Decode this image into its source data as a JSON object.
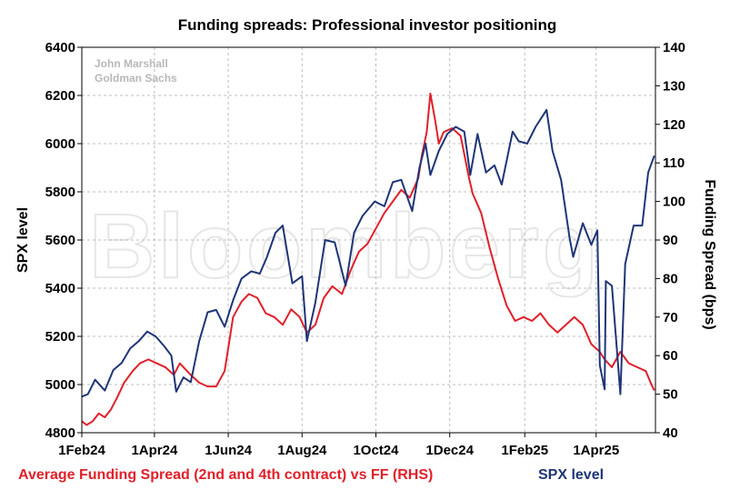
{
  "chart_data": {
    "type": "line",
    "title": "Funding spreads: Professional investor positioning",
    "ylabel": "SPX level",
    "y2label": "Funding Spread (bps)",
    "ylim": [
      4800,
      6400
    ],
    "y2lim": [
      40,
      140
    ],
    "yticks": [
      4800,
      5000,
      5200,
      5400,
      5600,
      5800,
      6000,
      6200,
      6400
    ],
    "y2ticks": [
      40,
      50,
      60,
      70,
      80,
      90,
      100,
      110,
      120,
      130,
      140
    ],
    "xlim": [
      "2024-02-01",
      "2025-05-20"
    ],
    "xticks": [
      {
        "date": "2024-02-01",
        "label": "1Feb24"
      },
      {
        "date": "2024-04-01",
        "label": "1Apr24"
      },
      {
        "date": "2024-06-01",
        "label": "1Jun24"
      },
      {
        "date": "2024-08-01",
        "label": "1Aug24"
      },
      {
        "date": "2024-10-01",
        "label": "1Oct24"
      },
      {
        "date": "2024-12-01",
        "label": "1Dec24"
      },
      {
        "date": "2025-02-01",
        "label": "1Feb25"
      },
      {
        "date": "2025-04-01",
        "label": "1Apr25"
      }
    ],
    "grid": true,
    "credit": [
      "John Marshall",
      "Goldman Sachs"
    ],
    "watermark": "Bloomberg",
    "series": [
      {
        "name": "Average Funding Spread (2nd and 4th contract) vs FF (RHS)",
        "axis": "right",
        "color": "#e0202a",
        "x": [
          "2024-02-01",
          "2024-02-05",
          "2024-02-10",
          "2024-02-15",
          "2024-02-20",
          "2024-02-25",
          "2024-03-01",
          "2024-03-07",
          "2024-03-14",
          "2024-03-20",
          "2024-03-27",
          "2024-04-03",
          "2024-04-10",
          "2024-04-17",
          "2024-04-22",
          "2024-05-01",
          "2024-05-08",
          "2024-05-15",
          "2024-05-22",
          "2024-05-29",
          "2024-06-05",
          "2024-06-12",
          "2024-06-18",
          "2024-06-25",
          "2024-07-02",
          "2024-07-09",
          "2024-07-16",
          "2024-07-23",
          "2024-07-30",
          "2024-08-05",
          "2024-08-12",
          "2024-08-19",
          "2024-08-26",
          "2024-09-03",
          "2024-09-10",
          "2024-09-17",
          "2024-09-24",
          "2024-10-01",
          "2024-10-08",
          "2024-10-15",
          "2024-10-22",
          "2024-10-29",
          "2024-11-05",
          "2024-11-08",
          "2024-11-12",
          "2024-11-15",
          "2024-11-19",
          "2024-11-22",
          "2024-11-26",
          "2024-12-03",
          "2024-12-10",
          "2024-12-17",
          "2024-12-20",
          "2024-12-27",
          "2025-01-03",
          "2025-01-10",
          "2025-01-17",
          "2025-01-24",
          "2025-01-31",
          "2025-02-07",
          "2025-02-14",
          "2025-02-21",
          "2025-02-28",
          "2025-03-07",
          "2025-03-14",
          "2025-03-21",
          "2025-03-28",
          "2025-04-04",
          "2025-04-08",
          "2025-04-14",
          "2025-04-21",
          "2025-04-28",
          "2025-05-05",
          "2025-05-12",
          "2025-05-16",
          "2025-05-19"
        ],
        "values": [
          43,
          42,
          43,
          45,
          44,
          46,
          49,
          53,
          56,
          58,
          59,
          58,
          57,
          55,
          58,
          55,
          53,
          52,
          52,
          56,
          70,
          74,
          76,
          75,
          71,
          70,
          68,
          72,
          70,
          66,
          68,
          75,
          78,
          76,
          82,
          87,
          89,
          93,
          97,
          100,
          103,
          101,
          106,
          112,
          118,
          128,
          121,
          115,
          118,
          119,
          117,
          106,
          102,
          97,
          88,
          80,
          73,
          69,
          70,
          69,
          71,
          68,
          66,
          68,
          70,
          68,
          63,
          61,
          59,
          57,
          61,
          58,
          57,
          56,
          53,
          51
        ]
      },
      {
        "name": "SPX level",
        "axis": "left",
        "color": "#1f3577",
        "x": [
          "2024-02-01",
          "2024-02-06",
          "2024-02-12",
          "2024-02-20",
          "2024-02-27",
          "2024-03-05",
          "2024-03-12",
          "2024-03-19",
          "2024-03-26",
          "2024-04-02",
          "2024-04-09",
          "2024-04-15",
          "2024-04-19",
          "2024-04-25",
          "2024-05-01",
          "2024-05-08",
          "2024-05-15",
          "2024-05-22",
          "2024-05-29",
          "2024-06-05",
          "2024-06-12",
          "2024-06-20",
          "2024-06-27",
          "2024-07-03",
          "2024-07-10",
          "2024-07-16",
          "2024-07-24",
          "2024-08-01",
          "2024-08-05",
          "2024-08-12",
          "2024-08-20",
          "2024-08-28",
          "2024-09-06",
          "2024-09-13",
          "2024-09-20",
          "2024-09-30",
          "2024-10-08",
          "2024-10-15",
          "2024-10-22",
          "2024-10-31",
          "2024-11-06",
          "2024-11-11",
          "2024-11-15",
          "2024-11-22",
          "2024-11-29",
          "2024-12-06",
          "2024-12-13",
          "2024-12-18",
          "2024-12-24",
          "2024-12-31",
          "2025-01-07",
          "2025-01-13",
          "2025-01-22",
          "2025-01-27",
          "2025-02-03",
          "2025-02-10",
          "2025-02-19",
          "2025-02-24",
          "2025-03-03",
          "2025-03-10",
          "2025-03-13",
          "2025-03-21",
          "2025-03-28",
          "2025-04-02",
          "2025-04-04",
          "2025-04-08",
          "2025-04-09",
          "2025-04-14",
          "2025-04-21",
          "2025-04-25",
          "2025-05-02",
          "2025-05-09",
          "2025-05-14",
          "2025-05-19"
        ],
        "values": [
          4950,
          4960,
          5020,
          4975,
          5060,
          5090,
          5150,
          5180,
          5220,
          5200,
          5160,
          5120,
          4970,
          5030,
          5010,
          5180,
          5300,
          5310,
          5240,
          5350,
          5440,
          5470,
          5460,
          5530,
          5630,
          5660,
          5420,
          5450,
          5180,
          5340,
          5600,
          5590,
          5410,
          5630,
          5700,
          5760,
          5740,
          5840,
          5850,
          5720,
          5900,
          6000,
          5870,
          5970,
          6040,
          6070,
          6050,
          5870,
          6040,
          5880,
          5910,
          5830,
          6050,
          6010,
          6000,
          6070,
          6140,
          5970,
          5850,
          5610,
          5530,
          5670,
          5580,
          5640,
          5080,
          4980,
          5430,
          5410,
          4960,
          5500,
          5660,
          5660,
          5880,
          5950
        ]
      }
    ]
  }
}
